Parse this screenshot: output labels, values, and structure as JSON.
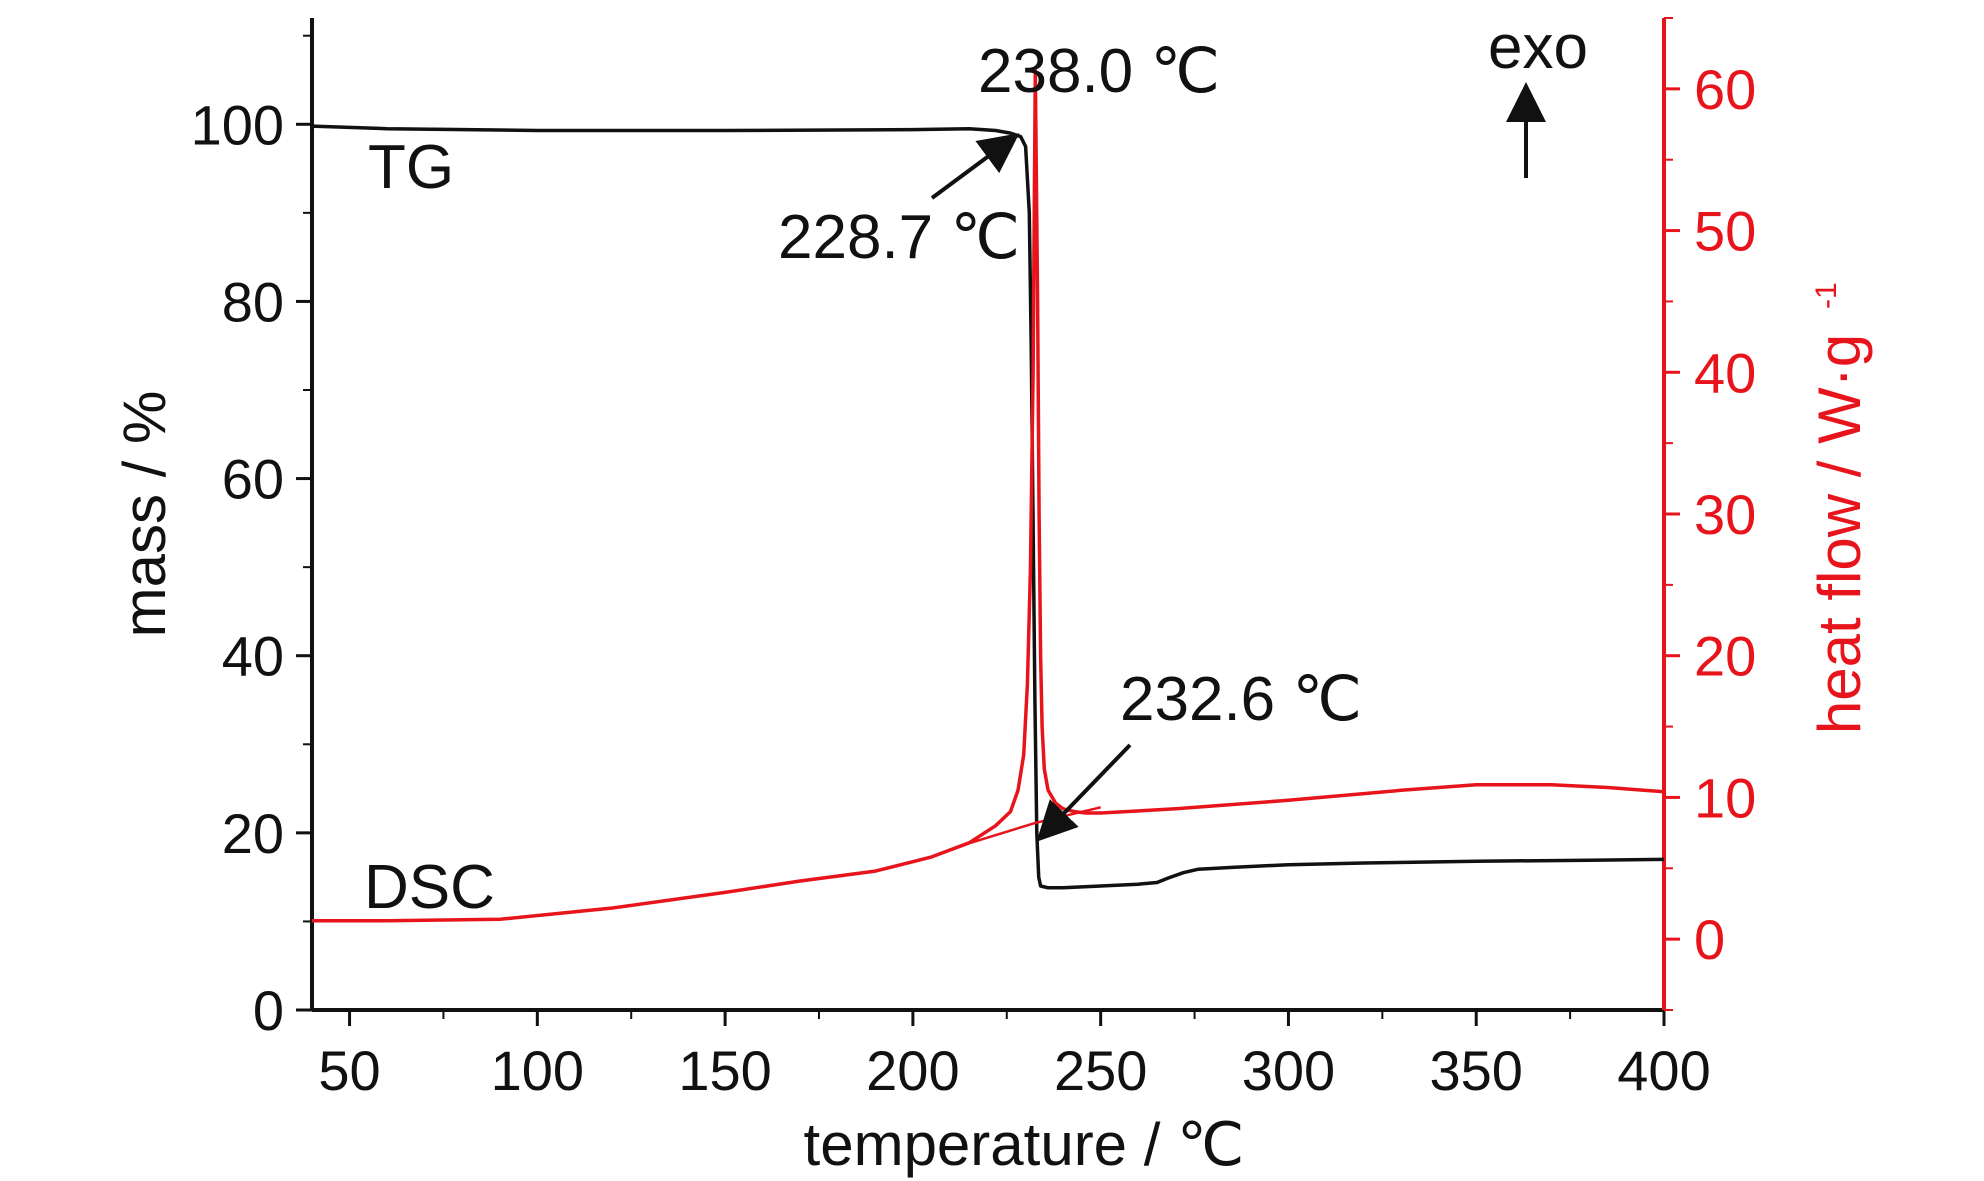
{
  "colors": {
    "tg": "#111111",
    "dsc": "#e8141c",
    "axis": "#111111"
  },
  "chart_data": {
    "type": "line",
    "xlabel": "temperature / ℃",
    "ylabel": "mass / %",
    "y2label": "heat flow / W·g",
    "y2label_sup": "-1",
    "xlim": [
      40,
      400
    ],
    "ylim": [
      0,
      112
    ],
    "y2lim": [
      -5,
      65
    ],
    "x_ticks": [
      50,
      100,
      150,
      200,
      250,
      300,
      350,
      400
    ],
    "y_ticks": [
      0,
      20,
      40,
      60,
      80,
      100
    ],
    "y2_ticks": [
      0,
      10,
      20,
      30,
      40,
      50,
      60
    ],
    "grid": false,
    "series": [
      {
        "name": "TG",
        "axis": "left",
        "x": [
          40,
          60,
          100,
          150,
          200,
          215,
          222,
          226,
          228.7,
          230,
          231,
          231.5,
          232,
          232.5,
          233,
          233.5,
          234,
          236,
          240,
          250,
          260,
          265,
          268,
          272,
          276,
          285,
          300,
          320,
          350,
          380,
          400
        ],
        "y": [
          99.8,
          99.5,
          99.3,
          99.3,
          99.4,
          99.5,
          99.3,
          99.0,
          98.6,
          97.5,
          90,
          75,
          55,
          35,
          20,
          15,
          14,
          13.8,
          13.8,
          14.0,
          14.2,
          14.4,
          14.9,
          15.5,
          15.9,
          16.1,
          16.4,
          16.6,
          16.8,
          16.9,
          17.0
        ]
      },
      {
        "name": "DSC",
        "axis": "right",
        "x": [
          40,
          60,
          90,
          120,
          150,
          170,
          190,
          205,
          215,
          222,
          226,
          228,
          229.5,
          230.5,
          231.3,
          232,
          232.6,
          233.2,
          233.6,
          234,
          234.4,
          235,
          236,
          238,
          240,
          243,
          246,
          250,
          270,
          300,
          330,
          350,
          370,
          385,
          400
        ],
        "y": [
          1.3,
          1.3,
          1.4,
          2.2,
          3.3,
          4.1,
          4.8,
          5.8,
          6.8,
          8.0,
          9.0,
          10.5,
          13,
          18,
          26,
          40,
          61.3,
          45,
          30,
          20,
          15,
          12,
          10.5,
          9.6,
          9.2,
          9.0,
          8.9,
          8.9,
          9.2,
          9.8,
          10.5,
          10.9,
          10.9,
          10.7,
          10.4
        ]
      }
    ],
    "baseline": {
      "axis": "right",
      "x": [
        213,
        232.6,
        250
      ],
      "y": [
        6.6,
        8.2,
        9.3
      ]
    },
    "annotations": [
      {
        "text": "238.0 ℃"
      },
      {
        "text": "228.7 ℃"
      },
      {
        "text": "232.6 ℃"
      },
      {
        "text": "TG"
      },
      {
        "text": "DSC"
      },
      {
        "text": "exo"
      }
    ]
  }
}
